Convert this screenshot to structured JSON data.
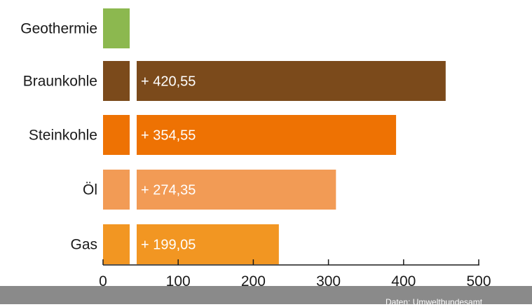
{
  "chart_data": {
    "type": "bar",
    "orientation": "horizontal",
    "categories": [
      "Geothermie",
      "Braunkohle",
      "Steinkohle",
      "Öl",
      "Gas"
    ],
    "values": [
      36,
      456,
      390,
      310,
      234
    ],
    "value_labels": [
      "",
      "+ 420,55",
      "+ 354,55",
      "+ 274,35",
      "+ 199,05"
    ],
    "xlim": [
      0,
      500
    ],
    "xticks": [
      0,
      100,
      200,
      300,
      400,
      500
    ],
    "xtick_labels": [
      "0",
      "100",
      "200",
      "300",
      "400",
      "500"
    ],
    "colors": {
      "Geothermie": "#8cb84f",
      "Braunkohle": "#7b4a1b",
      "Steinkohle": "#ee7203",
      "Öl": "#f29b55",
      "Gas": "#f29622"
    },
    "base_segment_value": 36,
    "grid": false,
    "legend": "none"
  },
  "footer": {
    "source": "Daten: Umweltbundesamt"
  }
}
